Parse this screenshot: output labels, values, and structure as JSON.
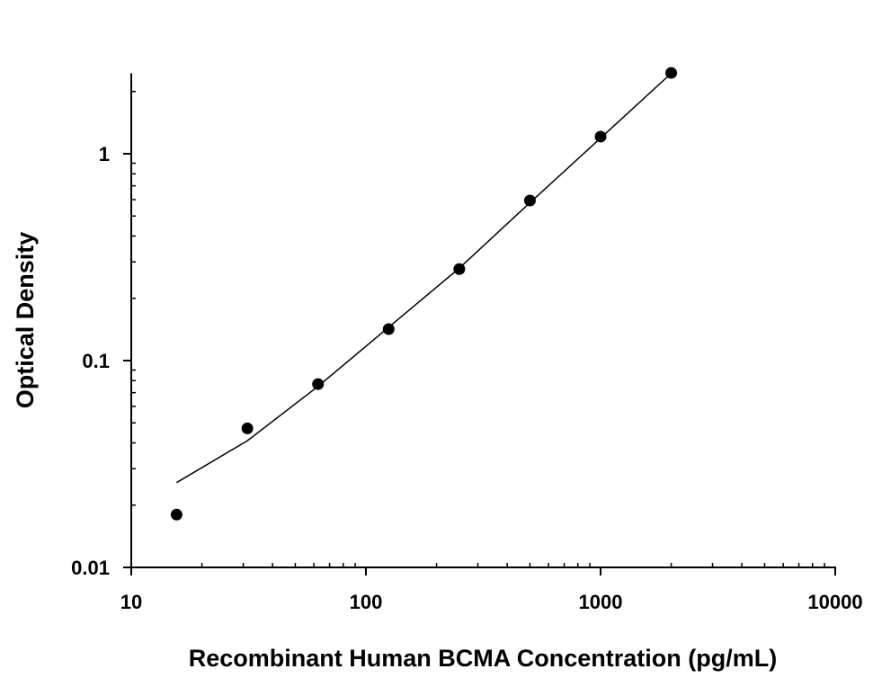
{
  "chart_data": {
    "type": "scatter",
    "title": "",
    "xlabel": "Recombinant Human BCMA Concentration (pg/mL)",
    "ylabel": "Optical Density",
    "x_scale": "log",
    "y_scale": "log",
    "xlim": [
      10,
      10000
    ],
    "ylim": [
      0.01,
      2.45
    ],
    "x_ticks": [
      10,
      100,
      1000,
      10000
    ],
    "x_tick_labels": [
      "10",
      "100",
      "1000",
      "10000"
    ],
    "y_ticks": [
      0.01,
      0.1,
      1
    ],
    "y_tick_labels": [
      "0.01",
      "0.1",
      "1"
    ],
    "grid": false,
    "legend": "none",
    "series": [
      {
        "type": "scatter",
        "color": "#000000",
        "x": [
          15.6,
          31.25,
          62.5,
          125,
          250,
          500,
          1000,
          2000
        ],
        "y": [
          0.018,
          0.047,
          0.077,
          0.142,
          0.277,
          0.594,
          1.21,
          2.46
        ]
      },
      {
        "type": "line",
        "color": "#000000",
        "x": [
          15.6,
          31.25,
          62.5,
          125,
          250,
          500,
          1000,
          2000
        ],
        "y": [
          0.0257,
          0.041,
          0.075,
          0.145,
          0.28,
          0.58,
          1.19,
          2.45
        ]
      }
    ]
  }
}
